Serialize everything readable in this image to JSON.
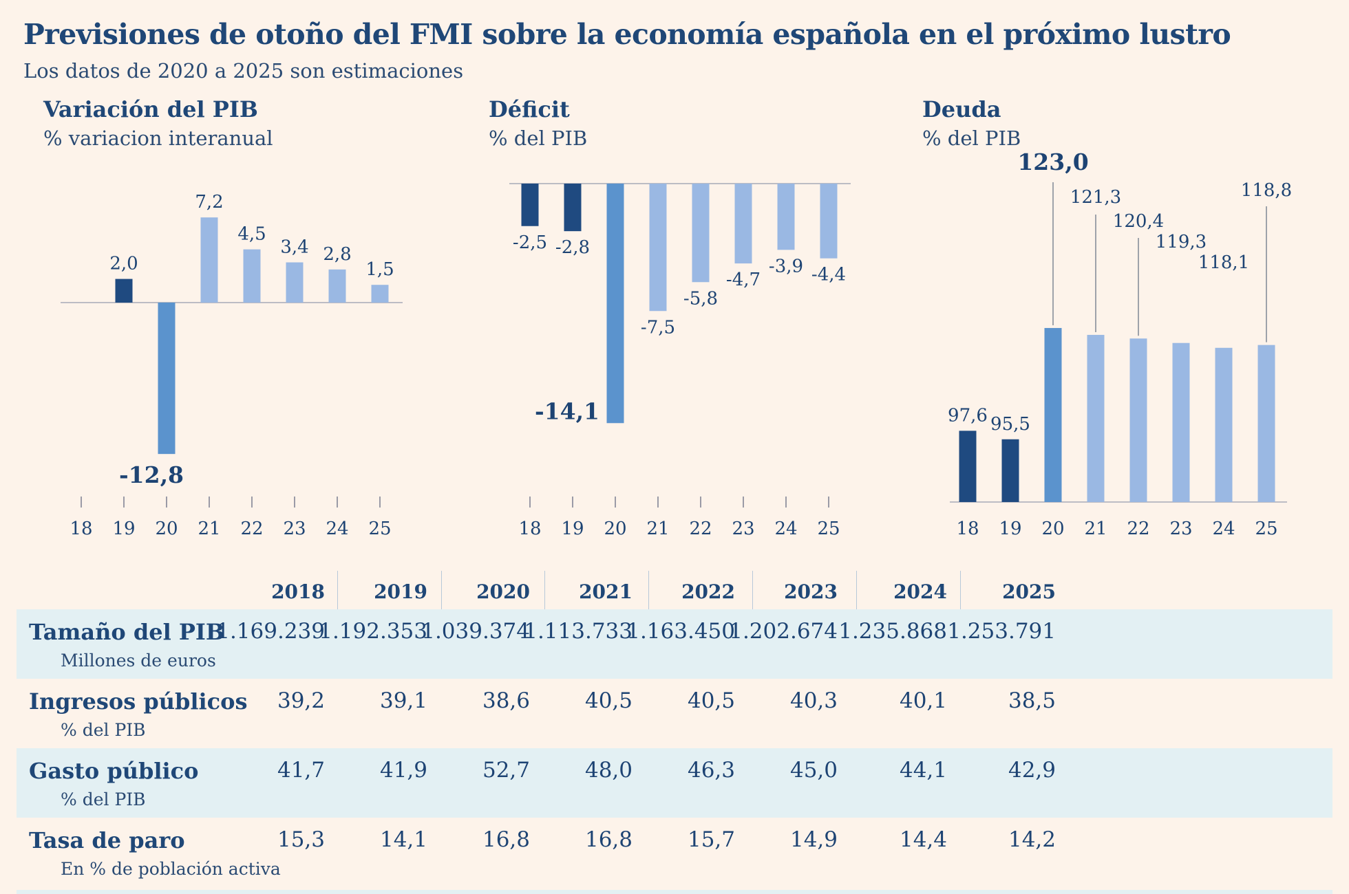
{
  "title": "Previsiones de otoño del FMI sobre la economía española en el próximo lustro",
  "subtitle": "Los datos de 2020 a 2025 son estimaciones",
  "colors": {
    "observed": "#1f4a80",
    "highlight": "#5b93cd",
    "forecast": "#9ab8e3",
    "text": "#1d4373",
    "background": "#fdf3ea",
    "row_shade": "#e3f0f3"
  },
  "chart_data": [
    {
      "type": "bar",
      "title": "Variación del PIB",
      "ylabel": "% variacion interanual",
      "categories": [
        "18",
        "19",
        "20",
        "21",
        "22",
        "23",
        "24",
        "25"
      ],
      "values": [
        null,
        2.0,
        -12.8,
        7.2,
        4.5,
        3.4,
        2.8,
        1.5
      ],
      "labels": [
        "",
        "2,0",
        "-12,8",
        "7,2",
        "4,5",
        "3,4",
        "2,8",
        "1,5"
      ],
      "highlight_index": 2,
      "observed_indices": [
        0,
        1
      ],
      "ylim": [
        -15,
        10
      ]
    },
    {
      "type": "bar",
      "title": "Déficit",
      "ylabel": "% del PIB",
      "categories": [
        "18",
        "19",
        "20",
        "21",
        "22",
        "23",
        "24",
        "25"
      ],
      "values": [
        -2.5,
        -2.8,
        -14.1,
        -7.5,
        -5.8,
        -4.7,
        -3.9,
        -4.4
      ],
      "labels": [
        "-2,5",
        "-2,8",
        "-14,1",
        "-7,5",
        "-5,8",
        "-4,7",
        "-3,9",
        "-4,4"
      ],
      "highlight_index": 2,
      "observed_indices": [
        0,
        1
      ],
      "ylim": [
        -15,
        0
      ]
    },
    {
      "type": "bar",
      "title": "Deuda",
      "ylabel": "% del PIB",
      "categories": [
        "18",
        "19",
        "20",
        "21",
        "22",
        "23",
        "24",
        "25"
      ],
      "values": [
        97.6,
        95.5,
        123.0,
        121.3,
        120.4,
        119.3,
        118.1,
        118.8
      ],
      "labels": [
        "97,6",
        "95,5",
        "123,0",
        "121,3",
        "120,4",
        "119,3",
        "118,1",
        "118,8"
      ],
      "highlight_index": 2,
      "observed_indices": [
        0,
        1
      ],
      "ylim": [
        80,
        125
      ]
    }
  ],
  "table": {
    "years": [
      "2018",
      "2019",
      "2020",
      "2021",
      "2022",
      "2023",
      "2024",
      "2025"
    ],
    "rows": [
      {
        "label": "Tamaño del PIB",
        "unit": "Millones de euros",
        "values": [
          "1.169.239",
          "1.192.353",
          "1.039.374",
          "1.113.733",
          "1.163.450",
          "1.202.674",
          "1.235.868",
          "1.253.791"
        ]
      },
      {
        "label": "Ingresos públicos",
        "unit": "% del PIB",
        "values": [
          "39,2",
          "39,1",
          "38,6",
          "40,5",
          "40,5",
          "40,3",
          "40,1",
          "38,5"
        ]
      },
      {
        "label": "Gasto público",
        "unit": "% del PIB",
        "values": [
          "41,7",
          "41,9",
          "52,7",
          "48,0",
          "46,3",
          "45,0",
          "44,1",
          "42,9"
        ]
      },
      {
        "label": "Tasa de paro",
        "unit": "En % de población activa",
        "values": [
          "15,3",
          "14,1",
          "16,8",
          "16,8",
          "15,7",
          "14,9",
          "14,4",
          "14,2"
        ]
      }
    ]
  }
}
